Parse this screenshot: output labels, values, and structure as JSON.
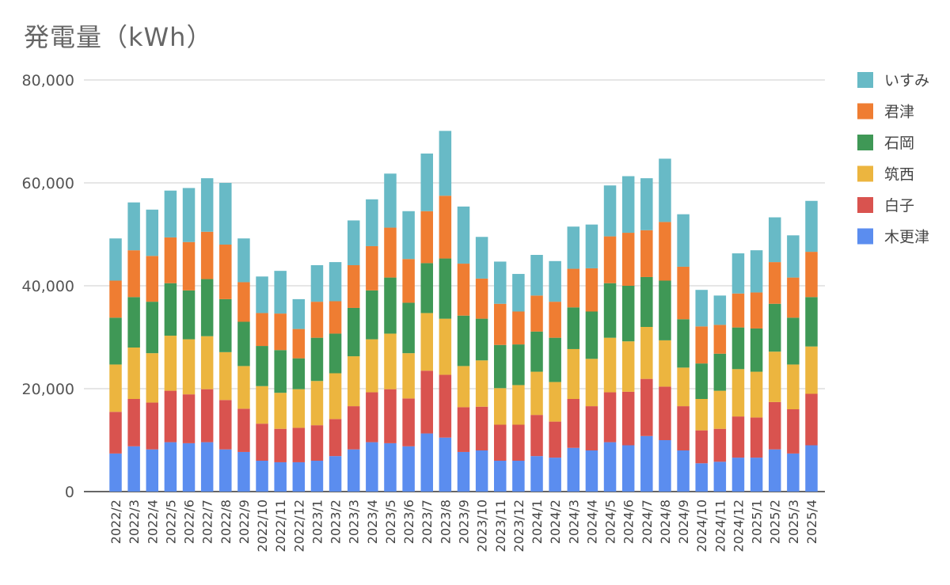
{
  "chart_data": {
    "type": "bar",
    "stacked": true,
    "title": "発電量（kWh）",
    "xlabel": "",
    "ylabel": "",
    "ylim": [
      0,
      80000
    ],
    "yticks": [
      0,
      20000,
      40000,
      60000,
      80000
    ],
    "ytick_labels": [
      "0",
      "20,000",
      "40,000",
      "60,000",
      "80,000"
    ],
    "grid": true,
    "legend_position": "right",
    "categories": [
      "2022/2",
      "2022/3",
      "2022/4",
      "2022/5",
      "2022/6",
      "2022/7",
      "2022/8",
      "2022/9",
      "2022/10",
      "2022/11",
      "2022/12",
      "2023/1",
      "2023/2",
      "2023/3",
      "2023/4",
      "2023/5",
      "2023/6",
      "2023/7",
      "2023/8",
      "2023/9",
      "2023/10",
      "2023/11",
      "2023/12",
      "2024/1",
      "2024/2",
      "2024/3",
      "2024/4",
      "2024/5",
      "2024/6",
      "2024/7",
      "2024/8",
      "2024/9",
      "2024/10",
      "2024/11",
      "2024/12",
      "2025/1",
      "2025/2",
      "2025/3",
      "2025/4"
    ],
    "series": [
      {
        "name": "木更津",
        "color": "#5b8def",
        "values": [
          7400,
          8800,
          8200,
          9600,
          9400,
          9600,
          8200,
          7700,
          6000,
          5700,
          5700,
          6000,
          6900,
          8200,
          9600,
          9400,
          8800,
          11300,
          10500,
          7700,
          8000,
          6000,
          6000,
          6900,
          6600,
          8500,
          8000,
          9600,
          9000,
          10800,
          10000,
          8000,
          5500,
          5800,
          6600,
          6600,
          8200,
          7400,
          9000
        ]
      },
      {
        "name": "白子",
        "color": "#d9534f",
        "values": [
          8100,
          9200,
          9100,
          10000,
          9500,
          10300,
          9600,
          8400,
          7200,
          6500,
          6700,
          6900,
          7200,
          8400,
          9700,
          10500,
          9300,
          12200,
          12200,
          8700,
          8500,
          7000,
          7000,
          8000,
          7000,
          9500,
          8600,
          9700,
          10400,
          11100,
          10400,
          8600,
          6400,
          6400,
          8000,
          7800,
          9200,
          8600,
          10000
        ]
      },
      {
        "name": "筑西",
        "color": "#ecb53f",
        "values": [
          9200,
          10000,
          9600,
          10700,
          10700,
          10300,
          9300,
          8300,
          7300,
          7000,
          7500,
          8600,
          8900,
          9700,
          10300,
          10800,
          8800,
          11200,
          10900,
          8000,
          9000,
          7100,
          7700,
          8400,
          7700,
          9700,
          9200,
          10600,
          9800,
          10100,
          9000,
          7500,
          6100,
          7400,
          9200,
          8900,
          9800,
          8700,
          9200
        ]
      },
      {
        "name": "石岡",
        "color": "#3f9856",
        "values": [
          9100,
          9800,
          10000,
          10200,
          9500,
          11100,
          10300,
          8600,
          7800,
          8300,
          6000,
          8400,
          7700,
          9400,
          9500,
          10900,
          9800,
          9700,
          11700,
          9800,
          8100,
          8400,
          7900,
          7800,
          8600,
          8100,
          9200,
          10600,
          10800,
          9700,
          11600,
          9400,
          6900,
          7200,
          8100,
          8400,
          9300,
          9100,
          9600
        ]
      },
      {
        "name": "君津",
        "color": "#ef7d32",
        "values": [
          7200,
          9100,
          8900,
          8900,
          9400,
          9200,
          10600,
          7700,
          6400,
          7100,
          5700,
          7000,
          6300,
          8300,
          8600,
          9700,
          8500,
          10100,
          12200,
          10100,
          7800,
          8000,
          6400,
          7000,
          7000,
          7500,
          8400,
          9100,
          10300,
          9100,
          11400,
          10200,
          7200,
          5600,
          6600,
          7000,
          8100,
          7800,
          8800
        ]
      },
      {
        "name": "いすみ",
        "color": "#68bac6",
        "values": [
          8200,
          9300,
          9000,
          9100,
          10500,
          10400,
          12000,
          8500,
          7100,
          8300,
          5800,
          7100,
          7600,
          8700,
          9100,
          10500,
          9300,
          11200,
          12600,
          11100,
          8100,
          8200,
          7300,
          7900,
          7900,
          8200,
          8500,
          9900,
          11000,
          10100,
          12300,
          10200,
          7100,
          5700,
          7800,
          8200,
          8700,
          8200,
          9900
        ]
      }
    ]
  }
}
